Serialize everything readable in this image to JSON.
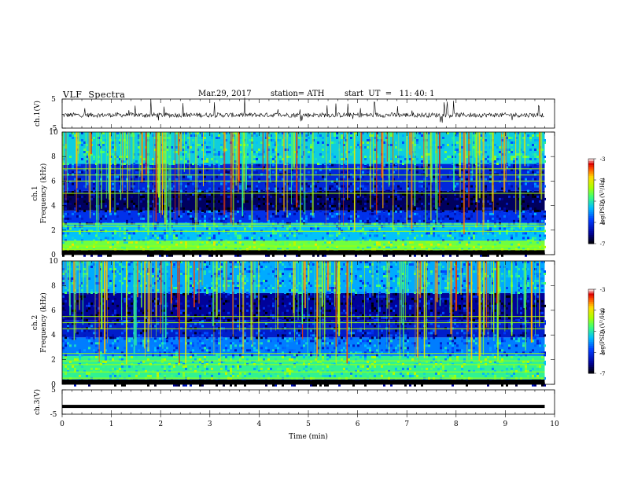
{
  "header": {
    "title": "VLF  Spectra",
    "date": "Mar.29, 2017",
    "station": "station= ATH",
    "start": "start  UT  =   11: 40: 1"
  },
  "chart_data": [
    {
      "type": "line",
      "panel": "ch1-waveform",
      "ylabel": "ch.1(V)",
      "ylim": [
        -5,
        5
      ],
      "yticks": [
        "5",
        "-5"
      ],
      "xlim": [
        0,
        10
      ],
      "baseline_value": -0.5,
      "trace_end_min": 9.8,
      "series": [
        {
          "values": "noisy waveform around -0.5 V with frequent spikes"
        }
      ]
    },
    {
      "type": "heatmap",
      "panel": "ch1-spectrogram",
      "ylabel": "ch.1\nFrequency (kHz)",
      "ylim": [
        0,
        10
      ],
      "yticks": [
        "0",
        "2",
        "4",
        "6",
        "8",
        "10"
      ],
      "xlim": [
        0,
        10
      ],
      "data_end_min": 9.8,
      "colorbar": {
        "label": "log(PSD) (V²/Hz)",
        "range": [
          -7,
          -3
        ],
        "ticks": [
          "-3",
          "-4",
          "-5",
          "-6",
          "-7"
        ]
      },
      "bands": [
        {
          "from_khz": 0,
          "to_khz": 0.4,
          "level": -6.9
        },
        {
          "from_khz": 0.4,
          "to_khz": 1.1,
          "level": -4.6
        },
        {
          "from_khz": 1.1,
          "to_khz": 2.6,
          "level": -5.3
        },
        {
          "from_khz": 2.6,
          "to_khz": 3.6,
          "level": -6.0
        },
        {
          "from_khz": 3.6,
          "to_khz": 5.2,
          "level": -6.7
        },
        {
          "from_khz": 5.2,
          "to_khz": 7.4,
          "level": -6.1
        },
        {
          "from_khz": 7.4,
          "to_khz": 10,
          "level": -5.2
        }
      ],
      "lines_khz": [
        0.4,
        0.7,
        1.1,
        1.9,
        2.3,
        2.5,
        5.0,
        6.0,
        6.5,
        7.0
      ]
    },
    {
      "type": "heatmap",
      "panel": "ch2-spectrogram",
      "ylabel": "ch.2\nFrequency (kHz)",
      "ylim": [
        0,
        10
      ],
      "yticks": [
        "0",
        "2",
        "4",
        "6",
        "8",
        "10"
      ],
      "xlim": [
        0,
        10
      ],
      "data_end_min": 9.8,
      "colorbar": {
        "label": "log(PSD) (V²/Hz)",
        "range": [
          -7,
          -3
        ],
        "ticks": [
          "-3",
          "-4",
          "-5",
          "-6",
          "-7"
        ]
      },
      "bands": [
        {
          "from_khz": 0,
          "to_khz": 0.4,
          "level": -6.9
        },
        {
          "from_khz": 0.4,
          "to_khz": 2.3,
          "level": -4.9
        },
        {
          "from_khz": 2.3,
          "to_khz": 3.8,
          "level": -5.6
        },
        {
          "from_khz": 3.8,
          "to_khz": 5.2,
          "level": -6.2
        },
        {
          "from_khz": 5.2,
          "to_khz": 7.4,
          "level": -6.5
        },
        {
          "from_khz": 7.4,
          "to_khz": 10,
          "level": -5.4
        }
      ],
      "lines_khz": [
        0.5,
        1.0,
        1.6,
        1.9,
        2.5,
        4.5,
        5.0,
        5.5
      ]
    },
    {
      "type": "line",
      "panel": "ch3-waveform",
      "ylabel": "ch.3(V)",
      "ylim": [
        -5,
        5
      ],
      "yticks": [
        "5",
        "-5"
      ],
      "xlim": [
        0,
        10
      ],
      "baseline_value": -1.8,
      "trace_end_min": 9.8,
      "xlabel": "Time  (min)",
      "xticks": [
        "0",
        "1",
        "2",
        "3",
        "4",
        "5",
        "6",
        "7",
        "8",
        "9",
        "10"
      ]
    }
  ]
}
